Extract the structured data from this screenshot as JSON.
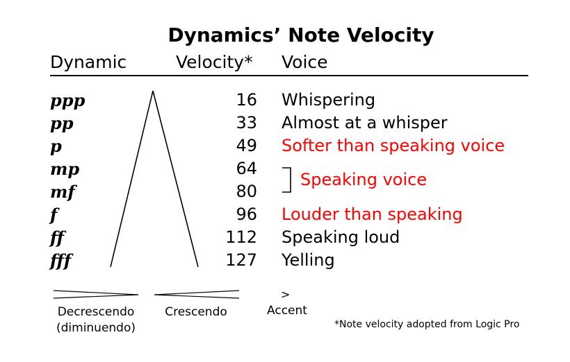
{
  "title": "Dynamics’ Note Velocity",
  "columns": {
    "dynamic": "Dynamic",
    "velocity": "Velocity*",
    "voice": "Voice"
  },
  "rows": [
    {
      "dynamic": "ppp",
      "velocity": "16",
      "voice": "Whispering",
      "voice_color": "#000000"
    },
    {
      "dynamic": "pp",
      "velocity": "33",
      "voice": "Almost at a whisper",
      "voice_color": "#000000"
    },
    {
      "dynamic": "p",
      "velocity": "49",
      "voice": "Softer than speaking voice",
      "voice_color": "#ff0000"
    },
    {
      "dynamic": "mp",
      "velocity": "64",
      "voice": "",
      "voice_color": "#000000"
    },
    {
      "dynamic": "mf",
      "velocity": "80",
      "voice": "",
      "voice_color": "#000000"
    },
    {
      "dynamic": "f",
      "velocity": "96",
      "voice": "Louder than speaking",
      "voice_color": "#ff0000"
    },
    {
      "dynamic": "ff",
      "velocity": "112",
      "voice": "Speaking loud",
      "voice_color": "#000000"
    },
    {
      "dynamic": "fff",
      "velocity": "127",
      "voice": "Yelling",
      "voice_color": "#000000"
    }
  ],
  "grouped_voice": "Speaking voice",
  "grouped_voice_color": "#ff0000",
  "legend": {
    "decrescendo": "Decrescendo",
    "diminuendo": "(diminuendo)",
    "crescendo": "Crescendo",
    "accent_symbol": ">",
    "accent": "Accent"
  },
  "footnote": "*Note velocity adopted from Logic Pro",
  "icons": [
    "dynamics-hairpin-icon",
    "decrescendo-hairpin-icon",
    "crescendo-hairpin-icon",
    "bracket-icon"
  ]
}
